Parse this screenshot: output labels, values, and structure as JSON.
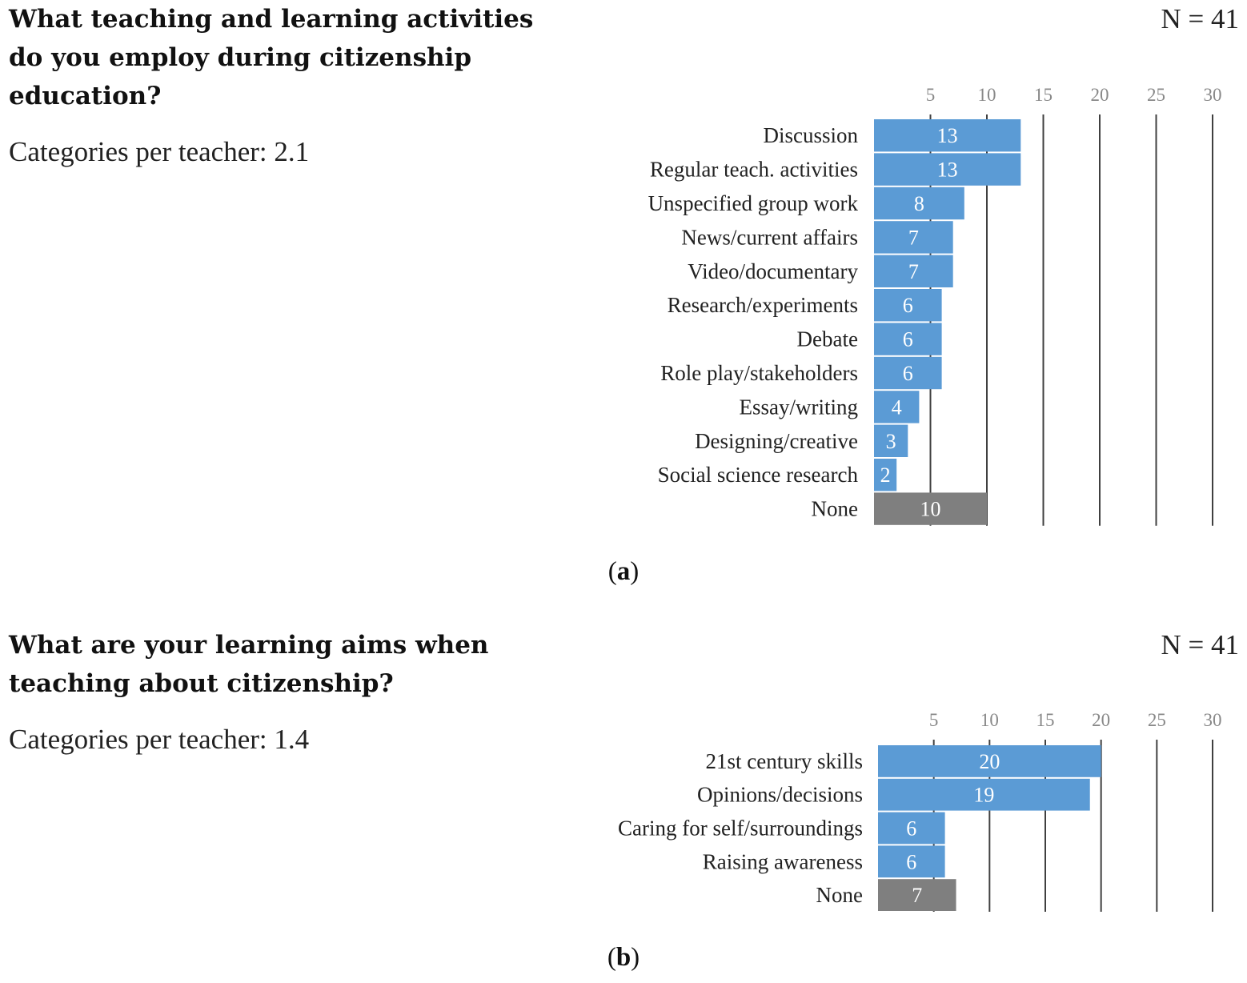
{
  "panel_a": {
    "question": "What teaching and learning activities do you employ during citizenship education?",
    "categories_per_teacher": "Categories per teacher: 2.1",
    "n_label": "N = 41",
    "caption_letter": "a"
  },
  "panel_b": {
    "question": "What are your learning aims when teaching about citizenship?",
    "categories_per_teacher": "Categories per teacher: 1.4",
    "n_label": "N = 41",
    "caption_letter": "b"
  },
  "colors": {
    "bar": "#5b9bd5",
    "none_bar": "#7f7f7f",
    "grid": "#404040",
    "tick": "#888888"
  },
  "chart_data": [
    {
      "type": "bar",
      "orientation": "horizontal",
      "title": "What teaching and learning activities do you employ during citizenship education?",
      "categories": [
        "Discussion",
        "Regular teach. activities",
        "Unspecified group work",
        "News/current affairs",
        "Video/documentary",
        "Research/experiments",
        "Debate",
        "Role play/stakeholders",
        "Essay/writing",
        "Designing/creative",
        "Social science research",
        "None"
      ],
      "values": [
        13,
        13,
        8,
        7,
        7,
        6,
        6,
        6,
        4,
        3,
        2,
        10
      ],
      "xticks": [
        5,
        10,
        15,
        20,
        25,
        30
      ],
      "xlim": [
        0,
        30
      ],
      "xlabel": "",
      "ylabel": "",
      "grid": true,
      "highlight_category": "None"
    },
    {
      "type": "bar",
      "orientation": "horizontal",
      "title": "What are your learning aims when teaching about citizenship?",
      "categories": [
        "21st century skills",
        "Opinions/decisions",
        "Caring for self/surroundings",
        "Raising awareness",
        "None"
      ],
      "values": [
        20,
        19,
        6,
        6,
        7
      ],
      "xticks": [
        5,
        10,
        15,
        20,
        25,
        30
      ],
      "xlim": [
        0,
        30
      ],
      "xlabel": "",
      "ylabel": "",
      "grid": true,
      "highlight_category": "None"
    }
  ]
}
